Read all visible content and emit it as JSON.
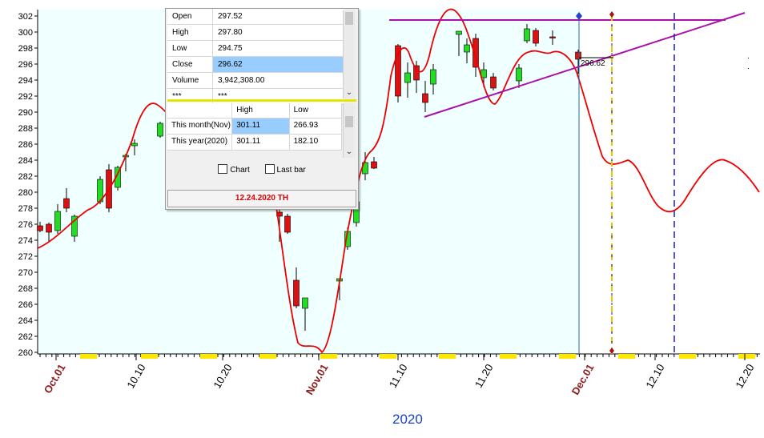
{
  "chart_data": {
    "type": "candlestick",
    "x_tick_labels": [
      "Oct.01",
      "10.10",
      "10.20",
      "Nov.01",
      "11.10",
      "11.20",
      "Dec.01",
      "12.10",
      "12.20"
    ],
    "x_tick_colors": [
      "#8b1a1a",
      "#000000",
      "#000000",
      "#8b1a1a",
      "#000000",
      "#000000",
      "#8b1a1a",
      "#000000",
      "#000000"
    ],
    "year_label": "2020",
    "y_ticks": [
      260,
      262,
      264,
      266,
      268,
      270,
      272,
      274,
      276,
      278,
      280,
      282,
      284,
      286,
      288,
      290,
      292,
      294,
      296,
      298,
      300,
      302
    ],
    "ylim": [
      260,
      302
    ],
    "candles": [
      {
        "o": 275.8,
        "h": 276.3,
        "l": 275.0,
        "c": 275.2
      },
      {
        "o": 276.0,
        "h": 276.2,
        "l": 273.8,
        "c": 275.0
      },
      {
        "o": 275.2,
        "h": 278.5,
        "l": 274.8,
        "c": 277.6
      },
      {
        "o": 279.2,
        "h": 280.5,
        "l": 277.5,
        "c": 278.0
      },
      {
        "o": 274.5,
        "h": 277.2,
        "l": 273.8,
        "c": 277.0
      },
      {
        "o": 278.8,
        "h": 282.0,
        "l": 278.5,
        "c": 281.6
      },
      {
        "o": 282.8,
        "h": 283.5,
        "l": 277.5,
        "c": 278.0
      },
      {
        "o": 280.6,
        "h": 283.3,
        "l": 280.2,
        "c": 283.1
      },
      {
        "o": 284.4,
        "h": 284.8,
        "l": 282.6,
        "c": 284.6
      },
      {
        "o": 285.8,
        "h": 286.6,
        "l": 284.6,
        "c": 286.1
      },
      {
        "o": 287.0,
        "h": 288.8,
        "l": 286.8,
        "c": 288.6
      },
      {
        "o": 277.5,
        "h": 278.0,
        "l": 273.8,
        "c": 277.0
      },
      {
        "o": 277.0,
        "h": 277.3,
        "l": 274.8,
        "c": 275.0
      },
      {
        "o": 269.0,
        "h": 270.6,
        "l": 265.5,
        "c": 265.8
      },
      {
        "o": 265.5,
        "h": 266.8,
        "l": 262.7,
        "c": 266.8
      },
      {
        "o": 268.9,
        "h": 269.2,
        "l": 266.5,
        "c": 269.2
      },
      {
        "o": 273.2,
        "h": 275.6,
        "l": 272.8,
        "c": 275.1
      },
      {
        "o": 276.2,
        "h": 279.5,
        "l": 275.7,
        "c": 278.8
      },
      {
        "o": 282.3,
        "h": 285.0,
        "l": 281.5,
        "c": 283.7
      },
      {
        "o": 283.8,
        "h": 284.4,
        "l": 282.9,
        "c": 283.0
      },
      {
        "o": 298.3,
        "h": 298.5,
        "l": 291.2,
        "c": 292.0
      },
      {
        "o": 293.7,
        "h": 296.2,
        "l": 291.8,
        "c": 294.9
      },
      {
        "o": 295.8,
        "h": 296.4,
        "l": 292.4,
        "c": 294.0
      },
      {
        "o": 292.3,
        "h": 293.9,
        "l": 290.0,
        "c": 291.2
      },
      {
        "o": 293.5,
        "h": 296.0,
        "l": 292.2,
        "c": 295.3
      },
      {
        "o": 299.7,
        "h": 300.1,
        "l": 297.0,
        "c": 300.1
      },
      {
        "o": 297.5,
        "h": 299.2,
        "l": 296.1,
        "c": 298.4
      },
      {
        "o": 299.2,
        "h": 299.8,
        "l": 294.4,
        "c": 295.6
      },
      {
        "o": 294.3,
        "h": 296.2,
        "l": 293.1,
        "c": 295.3
      },
      {
        "o": 294.4,
        "h": 294.9,
        "l": 292.7,
        "c": 293.0
      },
      {
        "o": 293.9,
        "h": 296.0,
        "l": 293.0,
        "c": 295.5
      },
      {
        "o": 298.9,
        "h": 301.0,
        "l": 298.6,
        "c": 300.4
      },
      {
        "o": 300.2,
        "h": 300.5,
        "l": 298.2,
        "c": 298.6
      },
      {
        "o": 299.4,
        "h": 300.2,
        "l": 298.4,
        "c": 299.3
      },
      {
        "o": 297.5,
        "h": 297.8,
        "l": 294.8,
        "c": 296.6
      }
    ],
    "last_close_label": "296.62",
    "info_panel": {
      "rows": [
        {
          "label": "Open",
          "value": "297.52"
        },
        {
          "label": "High",
          "value": "297.80"
        },
        {
          "label": "Low",
          "value": "294.75"
        },
        {
          "label": "Close",
          "value": "296.62"
        },
        {
          "label": "Volume",
          "value": "3,942,308.00"
        },
        {
          "label": "***",
          "value": "***"
        }
      ],
      "range_header": [
        "",
        "High",
        "Low"
      ],
      "range_rows": [
        {
          "label": "This month(Nov)",
          "high": "301.11",
          "low": "266.93"
        },
        {
          "label": "This year(2020)",
          "high": "301.11",
          "low": "182.10"
        }
      ],
      "check_chart": "Chart",
      "check_lastbar": "Last bar",
      "date_label": "12.24.2020 TH"
    },
    "colors": {
      "up": "#22dd22",
      "down": "#dd1111",
      "curve": "#ee0000",
      "trend": "#aa11aa",
      "background": "#f0ffff",
      "projection_line": "#1a1acc",
      "dashed_yellow": "#e6c800"
    }
  }
}
